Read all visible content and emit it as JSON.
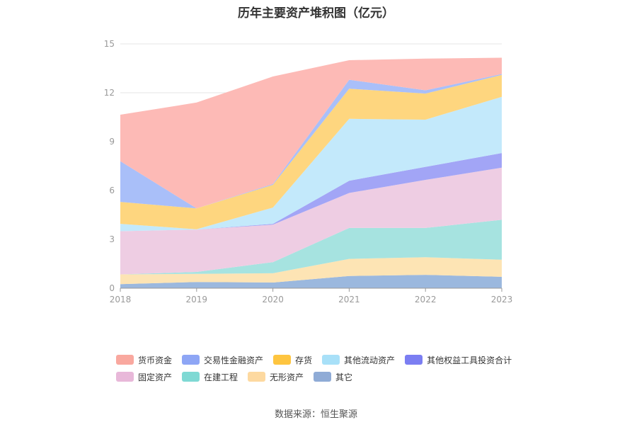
{
  "chart_data": {
    "type": "area",
    "stacked": true,
    "title": "历年主要资产堆积图（亿元）",
    "x": [
      "2018",
      "2019",
      "2020",
      "2021",
      "2022",
      "2023"
    ],
    "ylim": [
      0,
      15
    ],
    "yticks": [
      "0",
      "3",
      "6",
      "9",
      "12",
      "15"
    ],
    "grid": true,
    "legend_position": "bottom",
    "series": [
      {
        "name": "其它",
        "color": "#9bb8de",
        "values": [
          0.25,
          0.38,
          0.35,
          0.75,
          0.82,
          0.7
        ]
      },
      {
        "name": "无形资产",
        "color": "#fde4b4",
        "values": [
          0.6,
          0.5,
          0.57,
          1.05,
          1.08,
          1.05
        ]
      },
      {
        "name": "在建工程",
        "color": "#a6e3e0",
        "values": [
          0.0,
          0.12,
          0.68,
          1.9,
          1.8,
          2.45
        ]
      },
      {
        "name": "固定资产",
        "color": "#eecde3",
        "values": [
          2.65,
          2.6,
          2.3,
          2.15,
          2.95,
          3.2
        ]
      },
      {
        "name": "其他权益工具投资合计",
        "color": "#a2a5f6",
        "values": [
          0.0,
          0.0,
          0.05,
          0.75,
          0.8,
          0.9
        ]
      },
      {
        "name": "其他流动资产",
        "color": "#c3e9fb",
        "values": [
          0.45,
          0.02,
          1.0,
          3.8,
          2.9,
          3.45
        ]
      },
      {
        "name": "存货",
        "color": "#fed67f",
        "values": [
          1.35,
          1.28,
          1.4,
          1.85,
          1.6,
          1.35
        ]
      },
      {
        "name": "交易性金融资产",
        "color": "#a9bff9",
        "values": [
          2.5,
          0.0,
          0.05,
          0.55,
          0.2,
          0.05
        ]
      },
      {
        "name": "货币资金",
        "color": "#fdbab6",
        "values": [
          2.85,
          6.5,
          6.6,
          1.2,
          1.95,
          1.0
        ]
      }
    ],
    "legend_colors": {
      "货币资金": "#f9a89f",
      "交易性金融资产": "#8ea6f5",
      "存货": "#fec540",
      "其他流动资产": "#a8e0f8",
      "其他权益工具投资合计": "#7b7ef2",
      "固定资产": "#e8b8d9",
      "在建工程": "#7fd9d4",
      "无形资产": "#fdd9a0",
      "其它": "#8fabd6"
    },
    "legend_order": [
      "货币资金",
      "交易性金融资产",
      "存货",
      "其他流动资产",
      "其他权益工具投资合计",
      "固定资产",
      "在建工程",
      "无形资产",
      "其它"
    ]
  },
  "source": "数据来源：恒生聚源"
}
